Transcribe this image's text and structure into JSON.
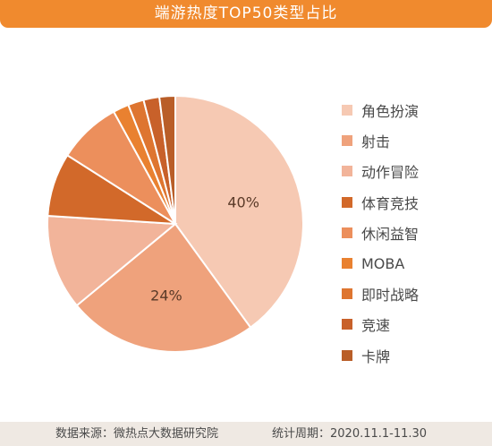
{
  "chart_data": {
    "type": "pie",
    "title": "端游热度TOP50类型占比",
    "categories": [
      "角色扮演",
      "射击",
      "动作冒险",
      "体育竞技",
      "休闲益智",
      "MOBA",
      "即时战略",
      "竞速",
      "卡牌"
    ],
    "values": [
      40,
      24,
      12,
      8,
      8,
      2,
      2,
      2,
      2
    ],
    "colors": [
      "#f6c9b3",
      "#efa27c",
      "#f2b49a",
      "#d2692a",
      "#ec8f5c",
      "#e98130",
      "#de7530",
      "#c8612a",
      "#b95e28"
    ],
    "data_labels": [
      "40%",
      "24%",
      "",
      "",
      "",
      "",
      "",
      "",
      ""
    ],
    "legend_position": "right"
  },
  "footer": {
    "source": "数据来源：微热点大数据研究院",
    "period": "统计周期：2020.11.1-11.30"
  }
}
